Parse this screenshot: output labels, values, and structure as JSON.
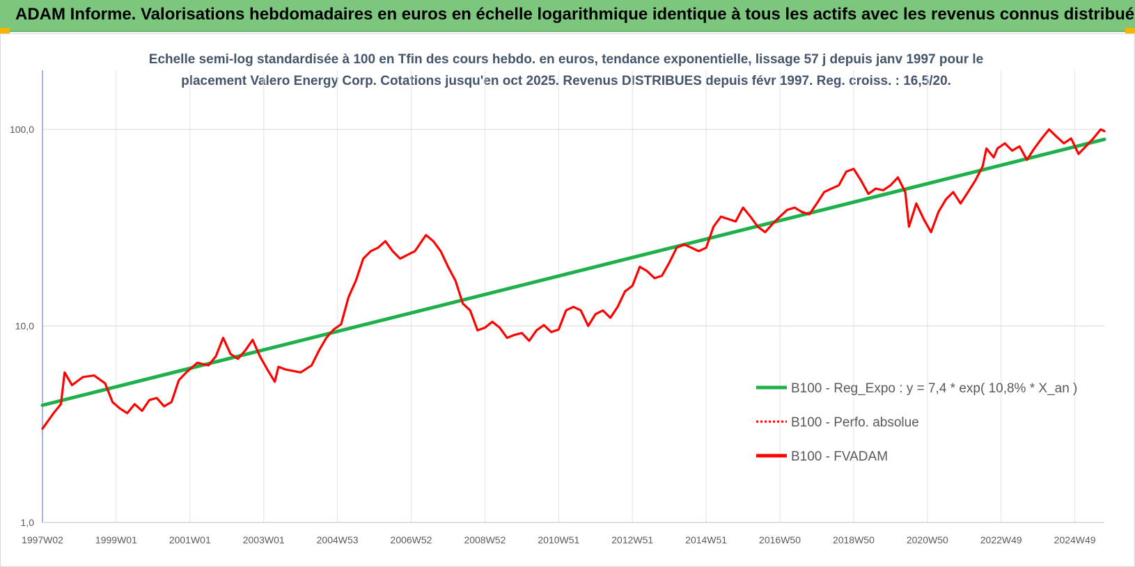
{
  "banner": {
    "title": "ADAM Informe. Valorisations hebdomadaires en euros en échelle logarithmique identique à tous les actifs avec les revenus connus distribués"
  },
  "colors": {
    "banner_bg": "#7dc67e",
    "trend": "#1fb04c",
    "series": "#ff0000",
    "subtitle": "#44546a"
  },
  "chart_data": {
    "type": "line",
    "subtitle_lines": [
      "Echelle semi-log standardisée à 100 en Tfin des cours hebdo. en euros, tendance exponentielle, lissage 57 j depuis janv 1997 pour le",
      "placement Valero Energy Corp. Cotations jusqu'en oct 2025. Revenus DISTRIBUES depuis févr 1997. Reg. croiss. : 16,5/20."
    ],
    "y_scale": "log",
    "ylim": [
      1,
      200
    ],
    "y_ticks": [
      {
        "value": 1,
        "label": "1,0"
      },
      {
        "value": 10,
        "label": "10,0"
      },
      {
        "value": 100,
        "label": "100,0"
      }
    ],
    "xlim": [
      1997.0,
      2025.8
    ],
    "x_ticks": [
      {
        "label": "1997W02",
        "x": 1997.0
      },
      {
        "label": "1999W01",
        "x": 1999.0
      },
      {
        "label": "2001W01",
        "x": 2001.0
      },
      {
        "label": "2003W01",
        "x": 2003.0
      },
      {
        "label": "2004W53",
        "x": 2005.0
      },
      {
        "label": "2006W52",
        "x": 2007.0
      },
      {
        "label": "2008W52",
        "x": 2009.0
      },
      {
        "label": "2010W51",
        "x": 2011.0
      },
      {
        "label": "2012W51",
        "x": 2013.0
      },
      {
        "label": "2014W51",
        "x": 2015.0
      },
      {
        "label": "2016W50",
        "x": 2017.0
      },
      {
        "label": "2018W50",
        "x": 2019.0
      },
      {
        "label": "2020W50",
        "x": 2021.0
      },
      {
        "label": "2022W49",
        "x": 2023.0
      },
      {
        "label": "2024W49",
        "x": 2025.0
      }
    ],
    "grid": true,
    "legend_position": "right-middle",
    "series": [
      {
        "name": "B100 - Reg_Expo : y = 7,4 * exp( 10,8% *  X_an )",
        "style": "solid",
        "color": "#1fb04c",
        "points": [
          [
            1997.0,
            3.95
          ],
          [
            2025.8,
            89.0
          ]
        ]
      },
      {
        "name": "B100 - Perfo. absolue",
        "style": "dotted",
        "color": "#ff0000",
        "points": []
      },
      {
        "name": "B100 - FVADAM",
        "style": "solid",
        "color": "#ff0000",
        "points": [
          [
            1997.0,
            3.0
          ],
          [
            1997.3,
            3.6
          ],
          [
            1997.5,
            4.0
          ],
          [
            1997.6,
            5.8
          ],
          [
            1997.8,
            5.0
          ],
          [
            1998.1,
            5.5
          ],
          [
            1998.4,
            5.6
          ],
          [
            1998.7,
            5.1
          ],
          [
            1998.9,
            4.1
          ],
          [
            1999.1,
            3.8
          ],
          [
            1999.3,
            3.6
          ],
          [
            1999.5,
            4.0
          ],
          [
            1999.7,
            3.7
          ],
          [
            1999.9,
            4.2
          ],
          [
            2000.1,
            4.3
          ],
          [
            2000.3,
            3.9
          ],
          [
            2000.5,
            4.1
          ],
          [
            2000.7,
            5.3
          ],
          [
            2000.9,
            5.8
          ],
          [
            2001.2,
            6.5
          ],
          [
            2001.5,
            6.3
          ],
          [
            2001.7,
            7.0
          ],
          [
            2001.9,
            8.7
          ],
          [
            2002.1,
            7.2
          ],
          [
            2002.3,
            6.8
          ],
          [
            2002.5,
            7.5
          ],
          [
            2002.7,
            8.5
          ],
          [
            2002.9,
            7.0
          ],
          [
            2003.1,
            6.0
          ],
          [
            2003.3,
            5.2
          ],
          [
            2003.4,
            6.2
          ],
          [
            2003.6,
            6.0
          ],
          [
            2003.8,
            5.9
          ],
          [
            2004.0,
            5.8
          ],
          [
            2004.3,
            6.3
          ],
          [
            2004.5,
            7.5
          ],
          [
            2004.7,
            8.7
          ],
          [
            2004.9,
            9.6
          ],
          [
            2005.1,
            10.2
          ],
          [
            2005.3,
            14.0
          ],
          [
            2005.5,
            17.0
          ],
          [
            2005.7,
            22.0
          ],
          [
            2005.9,
            24.0
          ],
          [
            2006.1,
            25.0
          ],
          [
            2006.3,
            27.0
          ],
          [
            2006.5,
            24.0
          ],
          [
            2006.7,
            22.0
          ],
          [
            2006.9,
            23.0
          ],
          [
            2007.1,
            24.0
          ],
          [
            2007.4,
            29.0
          ],
          [
            2007.6,
            27.0
          ],
          [
            2007.8,
            24.0
          ],
          [
            2008.0,
            20.0
          ],
          [
            2008.2,
            17.0
          ],
          [
            2008.4,
            13.0
          ],
          [
            2008.6,
            12.0
          ],
          [
            2008.8,
            9.5
          ],
          [
            2009.0,
            9.8
          ],
          [
            2009.2,
            10.5
          ],
          [
            2009.4,
            9.8
          ],
          [
            2009.6,
            8.7
          ],
          [
            2009.8,
            9.0
          ],
          [
            2010.0,
            9.2
          ],
          [
            2010.2,
            8.4
          ],
          [
            2010.4,
            9.5
          ],
          [
            2010.6,
            10.1
          ],
          [
            2010.8,
            9.3
          ],
          [
            2011.0,
            9.6
          ],
          [
            2011.2,
            12.0
          ],
          [
            2011.4,
            12.5
          ],
          [
            2011.6,
            12.0
          ],
          [
            2011.8,
            10.0
          ],
          [
            2012.0,
            11.5
          ],
          [
            2012.2,
            12.0
          ],
          [
            2012.4,
            11.0
          ],
          [
            2012.6,
            12.5
          ],
          [
            2012.8,
            15.0
          ],
          [
            2013.0,
            16.0
          ],
          [
            2013.2,
            20.0
          ],
          [
            2013.4,
            19.0
          ],
          [
            2013.6,
            17.5
          ],
          [
            2013.8,
            18.0
          ],
          [
            2014.0,
            21.0
          ],
          [
            2014.2,
            25.0
          ],
          [
            2014.4,
            26.0
          ],
          [
            2014.6,
            25.0
          ],
          [
            2014.8,
            24.0
          ],
          [
            2015.0,
            25.0
          ],
          [
            2015.2,
            32.0
          ],
          [
            2015.4,
            36.0
          ],
          [
            2015.6,
            35.0
          ],
          [
            2015.8,
            34.0
          ],
          [
            2016.0,
            40.0
          ],
          [
            2016.2,
            36.0
          ],
          [
            2016.4,
            32.0
          ],
          [
            2016.6,
            30.0
          ],
          [
            2016.8,
            33.0
          ],
          [
            2017.0,
            36.0
          ],
          [
            2017.2,
            39.0
          ],
          [
            2017.4,
            40.0
          ],
          [
            2017.6,
            38.0
          ],
          [
            2017.8,
            37.0
          ],
          [
            2018.0,
            42.0
          ],
          [
            2018.2,
            48.0
          ],
          [
            2018.4,
            50.0
          ],
          [
            2018.6,
            52.0
          ],
          [
            2018.8,
            61.0
          ],
          [
            2019.0,
            63.0
          ],
          [
            2019.2,
            55.0
          ],
          [
            2019.4,
            47.0
          ],
          [
            2019.6,
            50.0
          ],
          [
            2019.8,
            49.0
          ],
          [
            2020.0,
            52.0
          ],
          [
            2020.2,
            57.0
          ],
          [
            2020.4,
            48.0
          ],
          [
            2020.5,
            32.0
          ],
          [
            2020.7,
            42.0
          ],
          [
            2020.9,
            35.0
          ],
          [
            2021.1,
            30.0
          ],
          [
            2021.3,
            38.0
          ],
          [
            2021.5,
            44.0
          ],
          [
            2021.7,
            48.0
          ],
          [
            2021.9,
            42.0
          ],
          [
            2022.1,
            48.0
          ],
          [
            2022.3,
            55.0
          ],
          [
            2022.5,
            65.0
          ],
          [
            2022.6,
            80.0
          ],
          [
            2022.8,
            72.0
          ],
          [
            2022.9,
            80.0
          ],
          [
            2023.1,
            85.0
          ],
          [
            2023.3,
            78.0
          ],
          [
            2023.5,
            82.0
          ],
          [
            2023.7,
            70.0
          ],
          [
            2023.9,
            80.0
          ],
          [
            2024.1,
            90.0
          ],
          [
            2024.3,
            100.0
          ],
          [
            2024.5,
            92.0
          ],
          [
            2024.7,
            85.0
          ],
          [
            2024.9,
            90.0
          ],
          [
            2025.1,
            75.0
          ],
          [
            2025.3,
            82.0
          ],
          [
            2025.5,
            90.0
          ],
          [
            2025.7,
            100.0
          ],
          [
            2025.8,
            98.0
          ]
        ]
      }
    ]
  }
}
